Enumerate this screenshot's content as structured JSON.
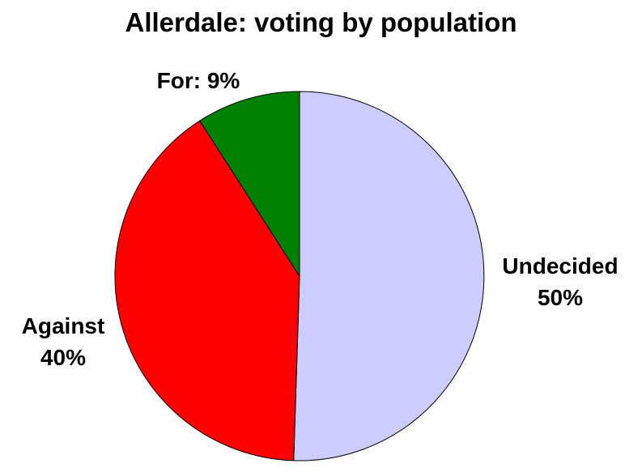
{
  "chart_data": {
    "type": "pie",
    "title": "Allerdale: voting by population",
    "categories": [
      "Undecided",
      "Against",
      "For"
    ],
    "values": [
      50,
      40,
      9
    ],
    "colors": {
      "Undecided": "#ccccff",
      "Against": "#ff0000",
      "For": "#008000"
    },
    "labels": [
      {
        "category": "Undecided",
        "lines": [
          "Undecided",
          "50%"
        ]
      },
      {
        "category": "Against",
        "lines": [
          "Against",
          "40%"
        ]
      },
      {
        "category": "For",
        "lines": [
          "For: 9%"
        ]
      }
    ],
    "start": "12 o'clock",
    "direction": "clockwise",
    "legend": "none"
  }
}
